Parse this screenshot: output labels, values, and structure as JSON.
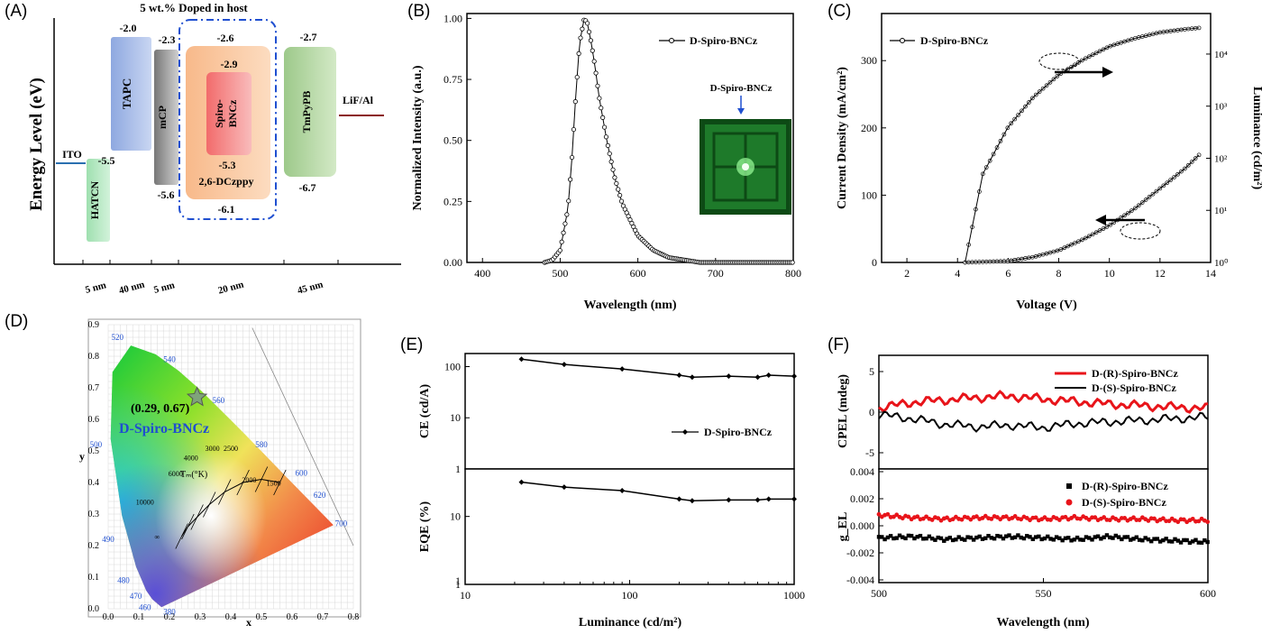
{
  "panels": [
    "(A)",
    "(B)",
    "(C)",
    "(D)",
    "(E)",
    "(F)"
  ],
  "colors": {
    "accent_blue": "#1f4fd0",
    "red": "#e8141a",
    "dark_red": "#8b1a1a",
    "ito": "#2a6fb0"
  },
  "panelA": {
    "title": "5 wt.% Doped in host",
    "ylabel": "Energy Level (eV)",
    "layers": [
      {
        "name": "ITO",
        "top": "",
        "bottom": "",
        "thickness": ""
      },
      {
        "name": "HATCN",
        "top": "",
        "bottom": "",
        "thickness": "5 nm"
      },
      {
        "name": "TAPC",
        "top": "-2.0",
        "bottom": "-5.5",
        "thickness": "40 nm"
      },
      {
        "name": "mCP",
        "top": "-2.3",
        "bottom": "-5.6",
        "thickness": "5 nm"
      },
      {
        "name": "2,6-DCzppy",
        "top": "-2.6",
        "bottom": "-6.1",
        "thickness": "20 nm"
      },
      {
        "name": "Spiro-BNCz",
        "top": "-2.9",
        "bottom": "-5.3",
        "thickness": ""
      },
      {
        "name": "TmPyPB",
        "top": "-2.7",
        "bottom": "-6.7",
        "thickness": "45 nm"
      },
      {
        "name": "LiF/Al",
        "top": "",
        "bottom": "",
        "thickness": ""
      }
    ],
    "spiro_label_1": "Spiro-",
    "spiro_label_2": "BNCz"
  },
  "chart_data": [
    {
      "panel": "B",
      "type": "line",
      "xlabel": "Wavelength (nm)",
      "ylabel": "Normalized Intensity (a.u.)",
      "xlim": [
        380,
        800
      ],
      "ylim": [
        0,
        1.02
      ],
      "xticks": [
        "400",
        "500",
        "600",
        "700",
        "800"
      ],
      "yticks": [
        "0.00",
        "0.25",
        "0.50",
        "0.75",
        "1.00"
      ],
      "series": [
        {
          "name": "D-Spiro-BNCz",
          "peak_nm": 531,
          "fwhm_nm": 50,
          "x": [
            480,
            490,
            500,
            510,
            515,
            520,
            525,
            531,
            535,
            540,
            545,
            550,
            560,
            570,
            580,
            600,
            620,
            640,
            660,
            680,
            700
          ],
          "y": [
            0,
            0.01,
            0.05,
            0.22,
            0.42,
            0.68,
            0.9,
            1.0,
            0.98,
            0.9,
            0.8,
            0.68,
            0.5,
            0.35,
            0.24,
            0.11,
            0.05,
            0.02,
            0.01,
            0,
            0
          ]
        }
      ],
      "inset_label": "D-Spiro-BNCz"
    },
    {
      "panel": "C",
      "type": "line",
      "xlabel": "Voltage (V)",
      "ylabel": "Current Density (mA/cm²)",
      "y2label": "Luminance (cd/m²)",
      "xlim": [
        1,
        14
      ],
      "ylim": [
        0,
        370
      ],
      "xticks": [
        "2",
        "4",
        "6",
        "8",
        "10",
        "12",
        "14"
      ],
      "yticks": [
        "0",
        "100",
        "200",
        "300"
      ],
      "y2ticks": [
        "10⁰",
        "10¹",
        "10²",
        "10³",
        "10⁴"
      ],
      "series": [
        {
          "name": "D-Spiro-BNCz",
          "x": [
            4.3,
            5,
            6,
            7,
            8,
            9,
            10,
            11,
            12,
            13,
            13.6
          ],
          "y_luminance": [
            1,
            50,
            400,
            1500,
            4000,
            8000,
            14000,
            20000,
            26000,
            30000,
            32000
          ]
        },
        {
          "name": "",
          "x": [
            4.3,
            6,
            7,
            8,
            9,
            10,
            11,
            12,
            13,
            13.6
          ],
          "y_current": [
            0,
            2,
            8,
            18,
            35,
            55,
            80,
            110,
            140,
            162
          ]
        }
      ]
    },
    {
      "panel": "D",
      "type": "scatter",
      "xlabel": "x",
      "ylabel": "y",
      "xlim": [
        0,
        0.8
      ],
      "ylim": [
        0,
        0.9
      ],
      "xticks": [
        "0.0",
        "0.1",
        "0.2",
        "0.3",
        "0.4",
        "0.5",
        "0.6",
        "0.7",
        "0.8"
      ],
      "yticks": [
        "0.0",
        "0.1",
        "0.2",
        "0.3",
        "0.4",
        "0.5",
        "0.6",
        "0.7",
        "0.8",
        "0.9"
      ],
      "point": {
        "x": 0.29,
        "y": 0.67,
        "label": "(0.29, 0.67)",
        "name": "D-Spiro-BNCz"
      },
      "wavelength_labels": [
        "380",
        "460",
        "470",
        "480",
        "490",
        "500",
        "520",
        "540",
        "560",
        "580",
        "600",
        "620",
        "700"
      ],
      "locus_label": "Tₘ(°K)",
      "cct_labels": [
        "10000",
        "6000",
        "4000",
        "3000",
        "2500",
        "2000",
        "1500",
        "∞"
      ]
    },
    {
      "panel": "E",
      "type": "line",
      "xlabel": "Luminance (cd/m²)",
      "xticks": [
        "10",
        "100",
        "1000"
      ],
      "top": {
        "ylabel": "CE (cd/A)",
        "yticks": [
          "1",
          "10",
          "100"
        ],
        "series": [
          {
            "name": "D-Spiro-BNCz",
            "x": [
              22,
              40,
              90,
              200,
              240,
              400,
              600,
              700,
              1000
            ],
            "y": [
              140,
              110,
              90,
              68,
              62,
              65,
              62,
              68,
              65
            ]
          }
        ]
      },
      "bottom": {
        "ylabel": "EQE (%)",
        "yticks": [
          "1",
          "10"
        ],
        "series": [
          {
            "name": "",
            "x": [
              22,
              40,
              90,
              200,
              240,
              400,
              600,
              700,
              1000
            ],
            "y": [
              32,
              27,
              24,
              18,
              17,
              17.5,
              17.5,
              18,
              18
            ]
          }
        ]
      }
    },
    {
      "panel": "F",
      "type": "line",
      "xlabel": "Wavelength (nm)",
      "xticks": [
        "500",
        "550",
        "600"
      ],
      "xlim": [
        500,
        600
      ],
      "top": {
        "ylabel": "CPEL (mdeg)",
        "yticks": [
          "5",
          "0",
          "-5"
        ],
        "ylim": [
          -7,
          7
        ],
        "series": [
          {
            "name": "D-(R)-Spiro-BNCz",
            "color": "#e8141a",
            "x": [
              500,
              510,
              520,
              530,
              540,
              550,
              560,
              570,
              580,
              590,
              600
            ],
            "y": [
              0.5,
              1.2,
              1.5,
              1.8,
              2.0,
              1.6,
              1.3,
              1.0,
              0.8,
              0.6,
              0.5
            ]
          },
          {
            "name": "D-(S)-Spiro-BNCz",
            "color": "#000000",
            "x": [
              500,
              510,
              520,
              530,
              540,
              550,
              560,
              570,
              580,
              590,
              600
            ],
            "y": [
              -0.3,
              -0.8,
              -1.5,
              -1.8,
              -1.6,
              -1.9,
              -1.4,
              -1.2,
              -1.0,
              -0.8,
              -0.6
            ]
          }
        ]
      },
      "bottom": {
        "ylabel": "g_EL",
        "yticks": [
          "0.004",
          "0.002",
          "0.000",
          "-0.002",
          "-0.004"
        ],
        "ylim": [
          -0.0042,
          0.0042
        ],
        "series": [
          {
            "name": "D-(R)-Spiro-BNCz",
            "color": "#000000",
            "x": [
              500,
              510,
              520,
              530,
              540,
              550,
              560,
              570,
              580,
              590,
              600
            ],
            "y": [
              -0.0009,
              -0.0008,
              -0.001,
              -0.0009,
              -0.0008,
              -0.0009,
              -0.001,
              -0.0008,
              -0.001,
              -0.0011,
              -0.0012
            ]
          },
          {
            "name": "D-(S)-Spiro-BNCz",
            "color": "#e8141a",
            "x": [
              500,
              510,
              520,
              530,
              540,
              550,
              560,
              570,
              580,
              590,
              600
            ],
            "y": [
              0.0008,
              0.0006,
              0.0005,
              0.0006,
              0.0006,
              0.0005,
              0.0006,
              0.0005,
              0.0005,
              0.0004,
              0.0004
            ]
          }
        ]
      }
    }
  ]
}
